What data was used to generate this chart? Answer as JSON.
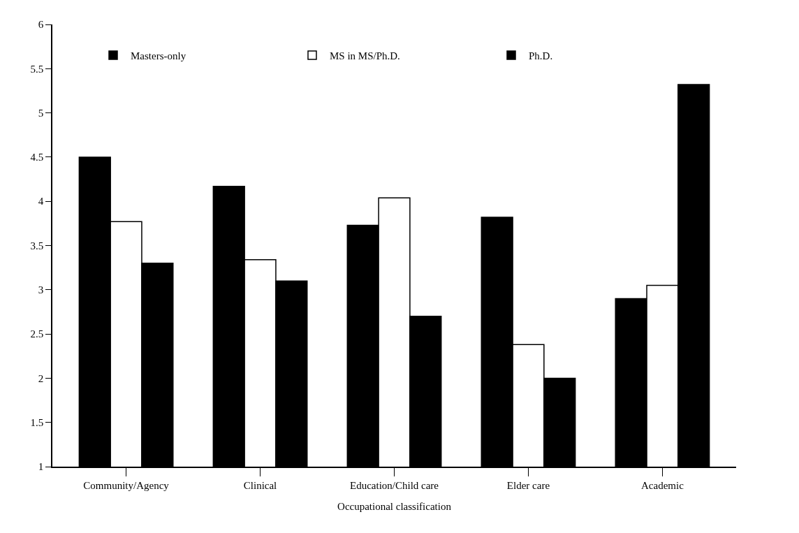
{
  "chart_data": {
    "type": "bar",
    "xlabel": "Occupational classification",
    "categories": [
      "Community/Agency",
      "Clinical",
      "Education/Child care",
      "Elder care",
      "Academic"
    ],
    "series": [
      {
        "name": "Masters-only",
        "color": "#000000",
        "values": [
          4.5,
          4.17,
          3.73,
          3.82,
          2.9
        ]
      },
      {
        "name": "MS in MS/Ph.D.",
        "color": "#ffffff",
        "values": [
          3.77,
          3.34,
          4.04,
          2.38,
          3.05
        ]
      },
      {
        "name": "Ph.D.",
        "color": "#000000",
        "values": [
          3.3,
          3.1,
          2.7,
          2.0,
          5.32
        ]
      }
    ],
    "ylim": [
      1,
      6
    ],
    "yticks": [
      1,
      1.5,
      2,
      2.5,
      3,
      3.5,
      4,
      4.5,
      5,
      5.5,
      6
    ],
    "grid": false,
    "legend": "top"
  }
}
